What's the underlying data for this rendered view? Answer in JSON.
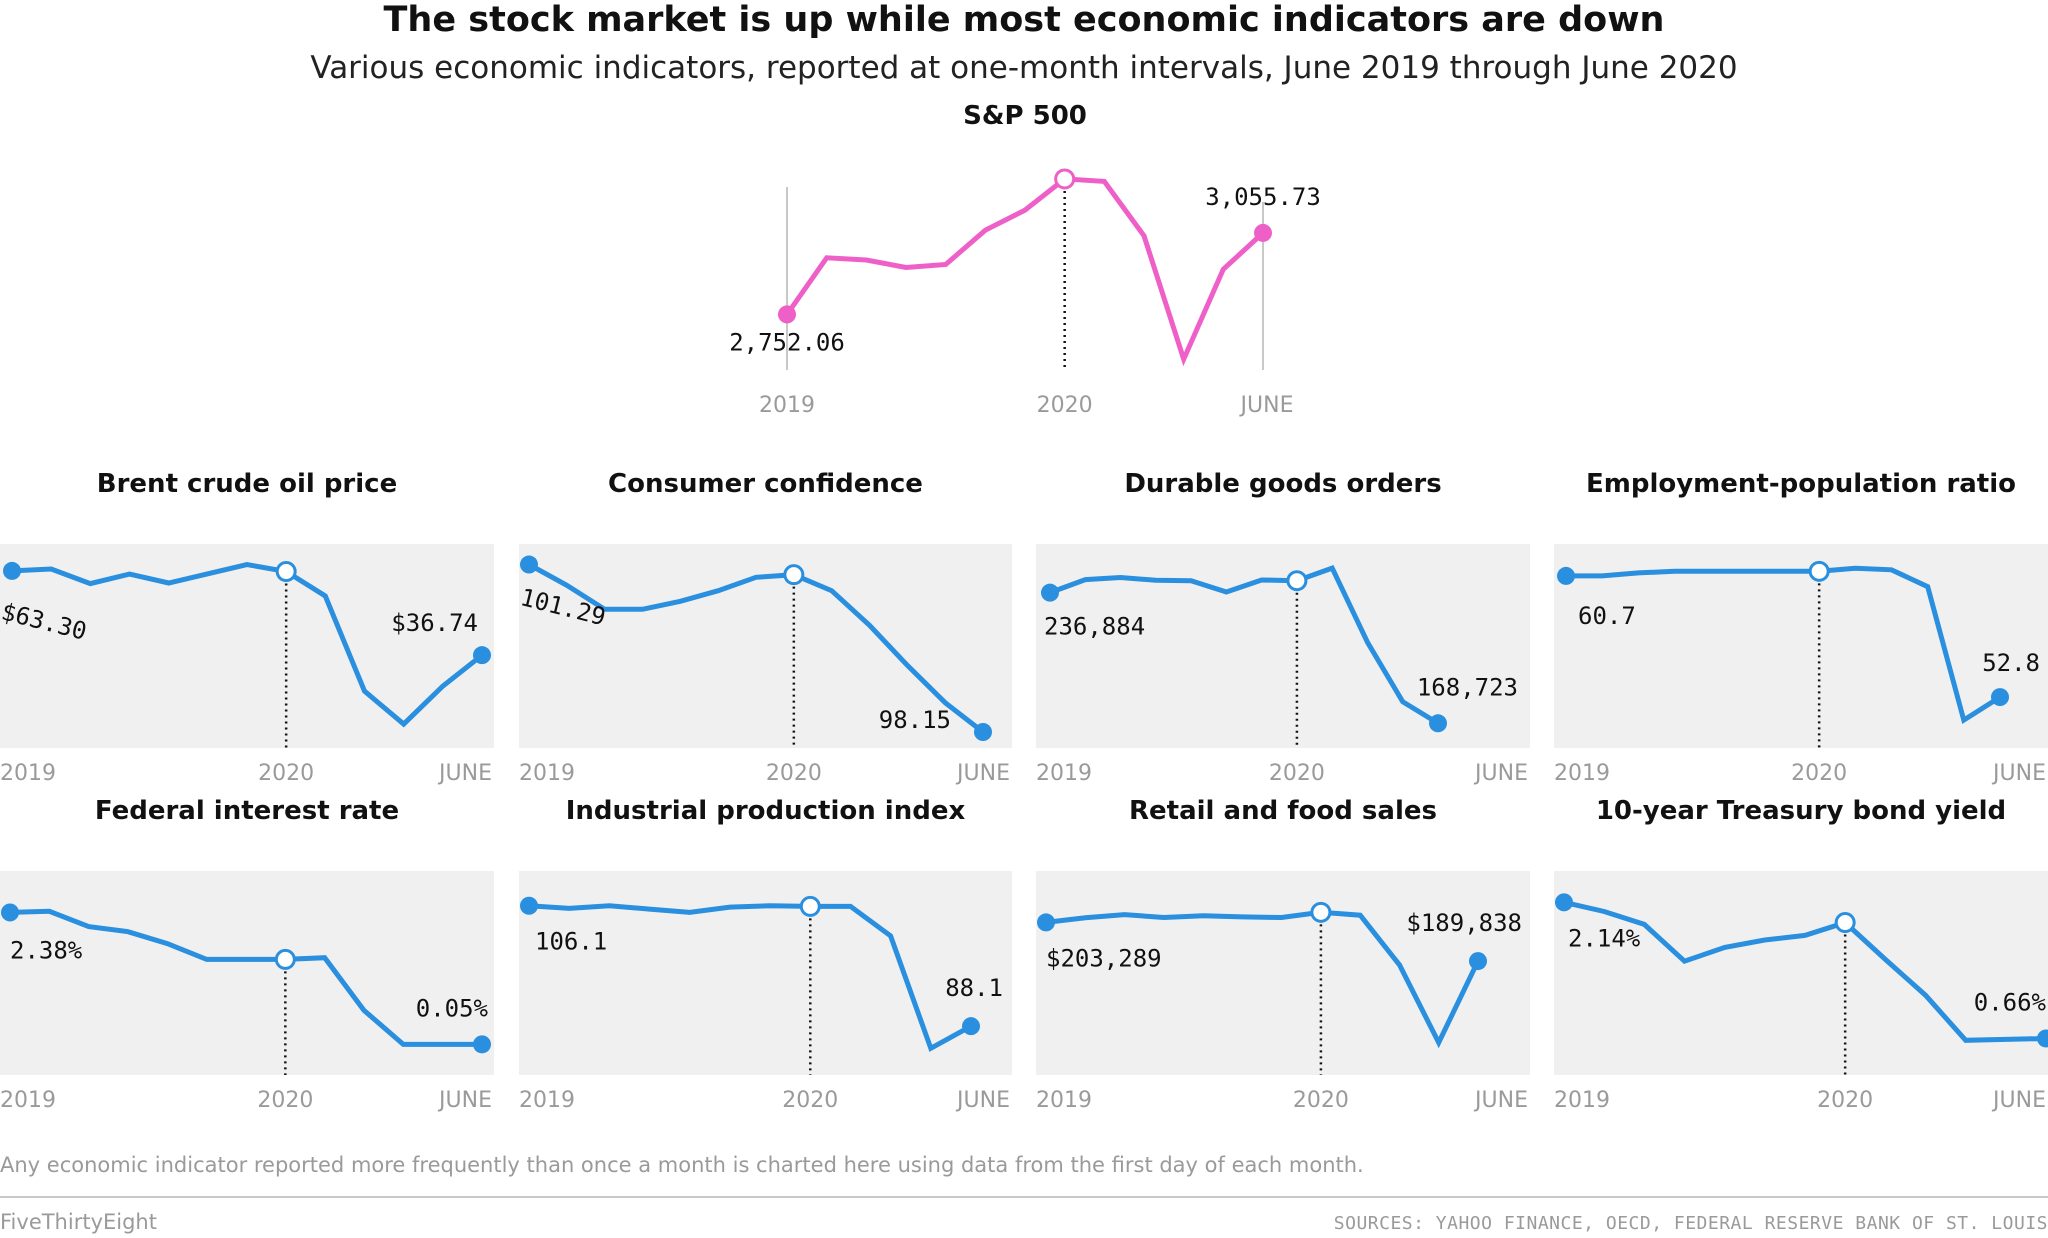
{
  "title": "The stock market is up while most economic indicators are down",
  "subtitle": "Various economic indicators, reported at one-month intervals, June 2019 through June 2020",
  "footnote": "Any economic indicator reported more frequently than once a month is charted here using data from the first day of each month.",
  "brand": "FiveThirtyEight",
  "sources": "SOURCES: YAHOO FINANCE, OECD, FEDERAL RESERVE BANK OF ST. LOUIS",
  "colors": {
    "sp500_line": "#ee60c8",
    "indicator_line": "#2a8fde",
    "panel_background": "#f0f0f0",
    "tick_label": "#9a9a9a"
  },
  "chart_data": [
    {
      "id": "sp500",
      "type": "line",
      "title": "S&P 500",
      "x_tick_labels": [
        "2019",
        "2020",
        "JUNE"
      ],
      "values": [
        2752.06,
        2963,
        2955,
        2927,
        2938,
        3066,
        3141,
        3257,
        3248,
        3045,
        2585,
        2920,
        3055.73
      ],
      "ylim": [
        2500,
        3350
      ],
      "start_label": "2,752.06",
      "end_label": "3,055.73",
      "background": "none"
    },
    {
      "id": "brent",
      "type": "line",
      "title": "Brent crude oil price",
      "x_tick_labels": [
        "2019",
        "2020",
        "JUNE"
      ],
      "values": [
        63.3,
        63.9,
        59.3,
        62.3,
        59.5,
        62.4,
        65.3,
        63.1,
        55.4,
        25.4,
        15.0,
        27.0,
        36.74
      ],
      "ylim": [
        10,
        68
      ],
      "start_label": "$63.30",
      "end_label": "$36.74",
      "background": "panel"
    },
    {
      "id": "consumer-confidence",
      "type": "line",
      "title": "Consumer confidence",
      "x_tick_labels": [
        "2019",
        "2020",
        "JUNE"
      ],
      "values": [
        101.29,
        100.9,
        100.45,
        100.45,
        100.6,
        100.8,
        101.05,
        101.1,
        100.8,
        100.15,
        99.4,
        98.7,
        98.15
      ],
      "ylim": [
        98.0,
        101.45
      ],
      "start_label": "101.29",
      "end_label": "98.15",
      "background": "panel"
    },
    {
      "id": "durable-goods",
      "type": "line",
      "title": "Durable goods orders",
      "x_tick_labels": [
        "2019",
        "2020",
        "JUNE"
      ],
      "values": [
        236884,
        243700,
        244800,
        243300,
        243100,
        237200,
        243500,
        243100,
        249700,
        211000,
        180000,
        168723
      ],
      "ylim": [
        160000,
        256000
      ],
      "start_label": "236,884",
      "end_label": "168,723",
      "background": "panel"
    },
    {
      "id": "employment-population",
      "type": "line",
      "title": "Employment-population ratio",
      "x_tick_labels": [
        "2019",
        "2020",
        "JUNE"
      ],
      "values": [
        60.7,
        60.7,
        60.9,
        61.0,
        61.0,
        61.0,
        61.0,
        61.0,
        61.2,
        61.1,
        60.0,
        51.3,
        52.8
      ],
      "ylim": [
        50.0,
        62.0
      ],
      "start_label": "60.7",
      "end_label": "52.8",
      "background": "panel"
    },
    {
      "id": "federal-rate",
      "type": "line",
      "title": "Federal interest rate",
      "x_tick_labels": [
        "2019",
        "2020",
        "JUNE"
      ],
      "values": [
        2.38,
        2.4,
        2.13,
        2.04,
        1.83,
        1.55,
        1.55,
        1.55,
        1.58,
        0.65,
        0.05,
        0.05,
        0.05
      ],
      "ylim": [
        -0.35,
        2.9
      ],
      "start_label": "2.38%",
      "end_label": "0.05%",
      "background": "panel"
    },
    {
      "id": "industrial-production",
      "type": "line",
      "title": "Industrial production index",
      "x_tick_labels": [
        "2019",
        "2020",
        "JUNE"
      ],
      "values": [
        106.1,
        105.7,
        106.1,
        105.6,
        105.1,
        105.9,
        106.1,
        106.0,
        106.0,
        101.6,
        84.8,
        88.1
      ],
      "ylim": [
        82.0,
        109.5
      ],
      "start_label": "106.1",
      "end_label": "88.1",
      "background": "panel"
    },
    {
      "id": "retail-food",
      "type": "line",
      "title": "Retail and food sales",
      "x_tick_labels": [
        "2019",
        "2020",
        "JUNE"
      ],
      "values": [
        203289,
        204900,
        206000,
        205000,
        205600,
        205200,
        205000,
        206800,
        205800,
        188500,
        161500,
        189838
      ],
      "ylim": [
        153000,
        217000
      ],
      "start_label": "$203,289",
      "end_label": "$189,838",
      "background": "panel"
    },
    {
      "id": "treasury-yield",
      "type": "line",
      "title": "10-year Treasury bond yield",
      "x_tick_labels": [
        "2019",
        "2020",
        "JUNE"
      ],
      "values": [
        2.14,
        2.04,
        1.9,
        1.5,
        1.65,
        1.73,
        1.78,
        1.92,
        1.52,
        1.13,
        0.64,
        0.65,
        0.66
      ],
      "ylim": [
        0.35,
        2.35
      ],
      "start_label": "2.14%",
      "end_label": "0.66%",
      "background": "panel"
    }
  ]
}
